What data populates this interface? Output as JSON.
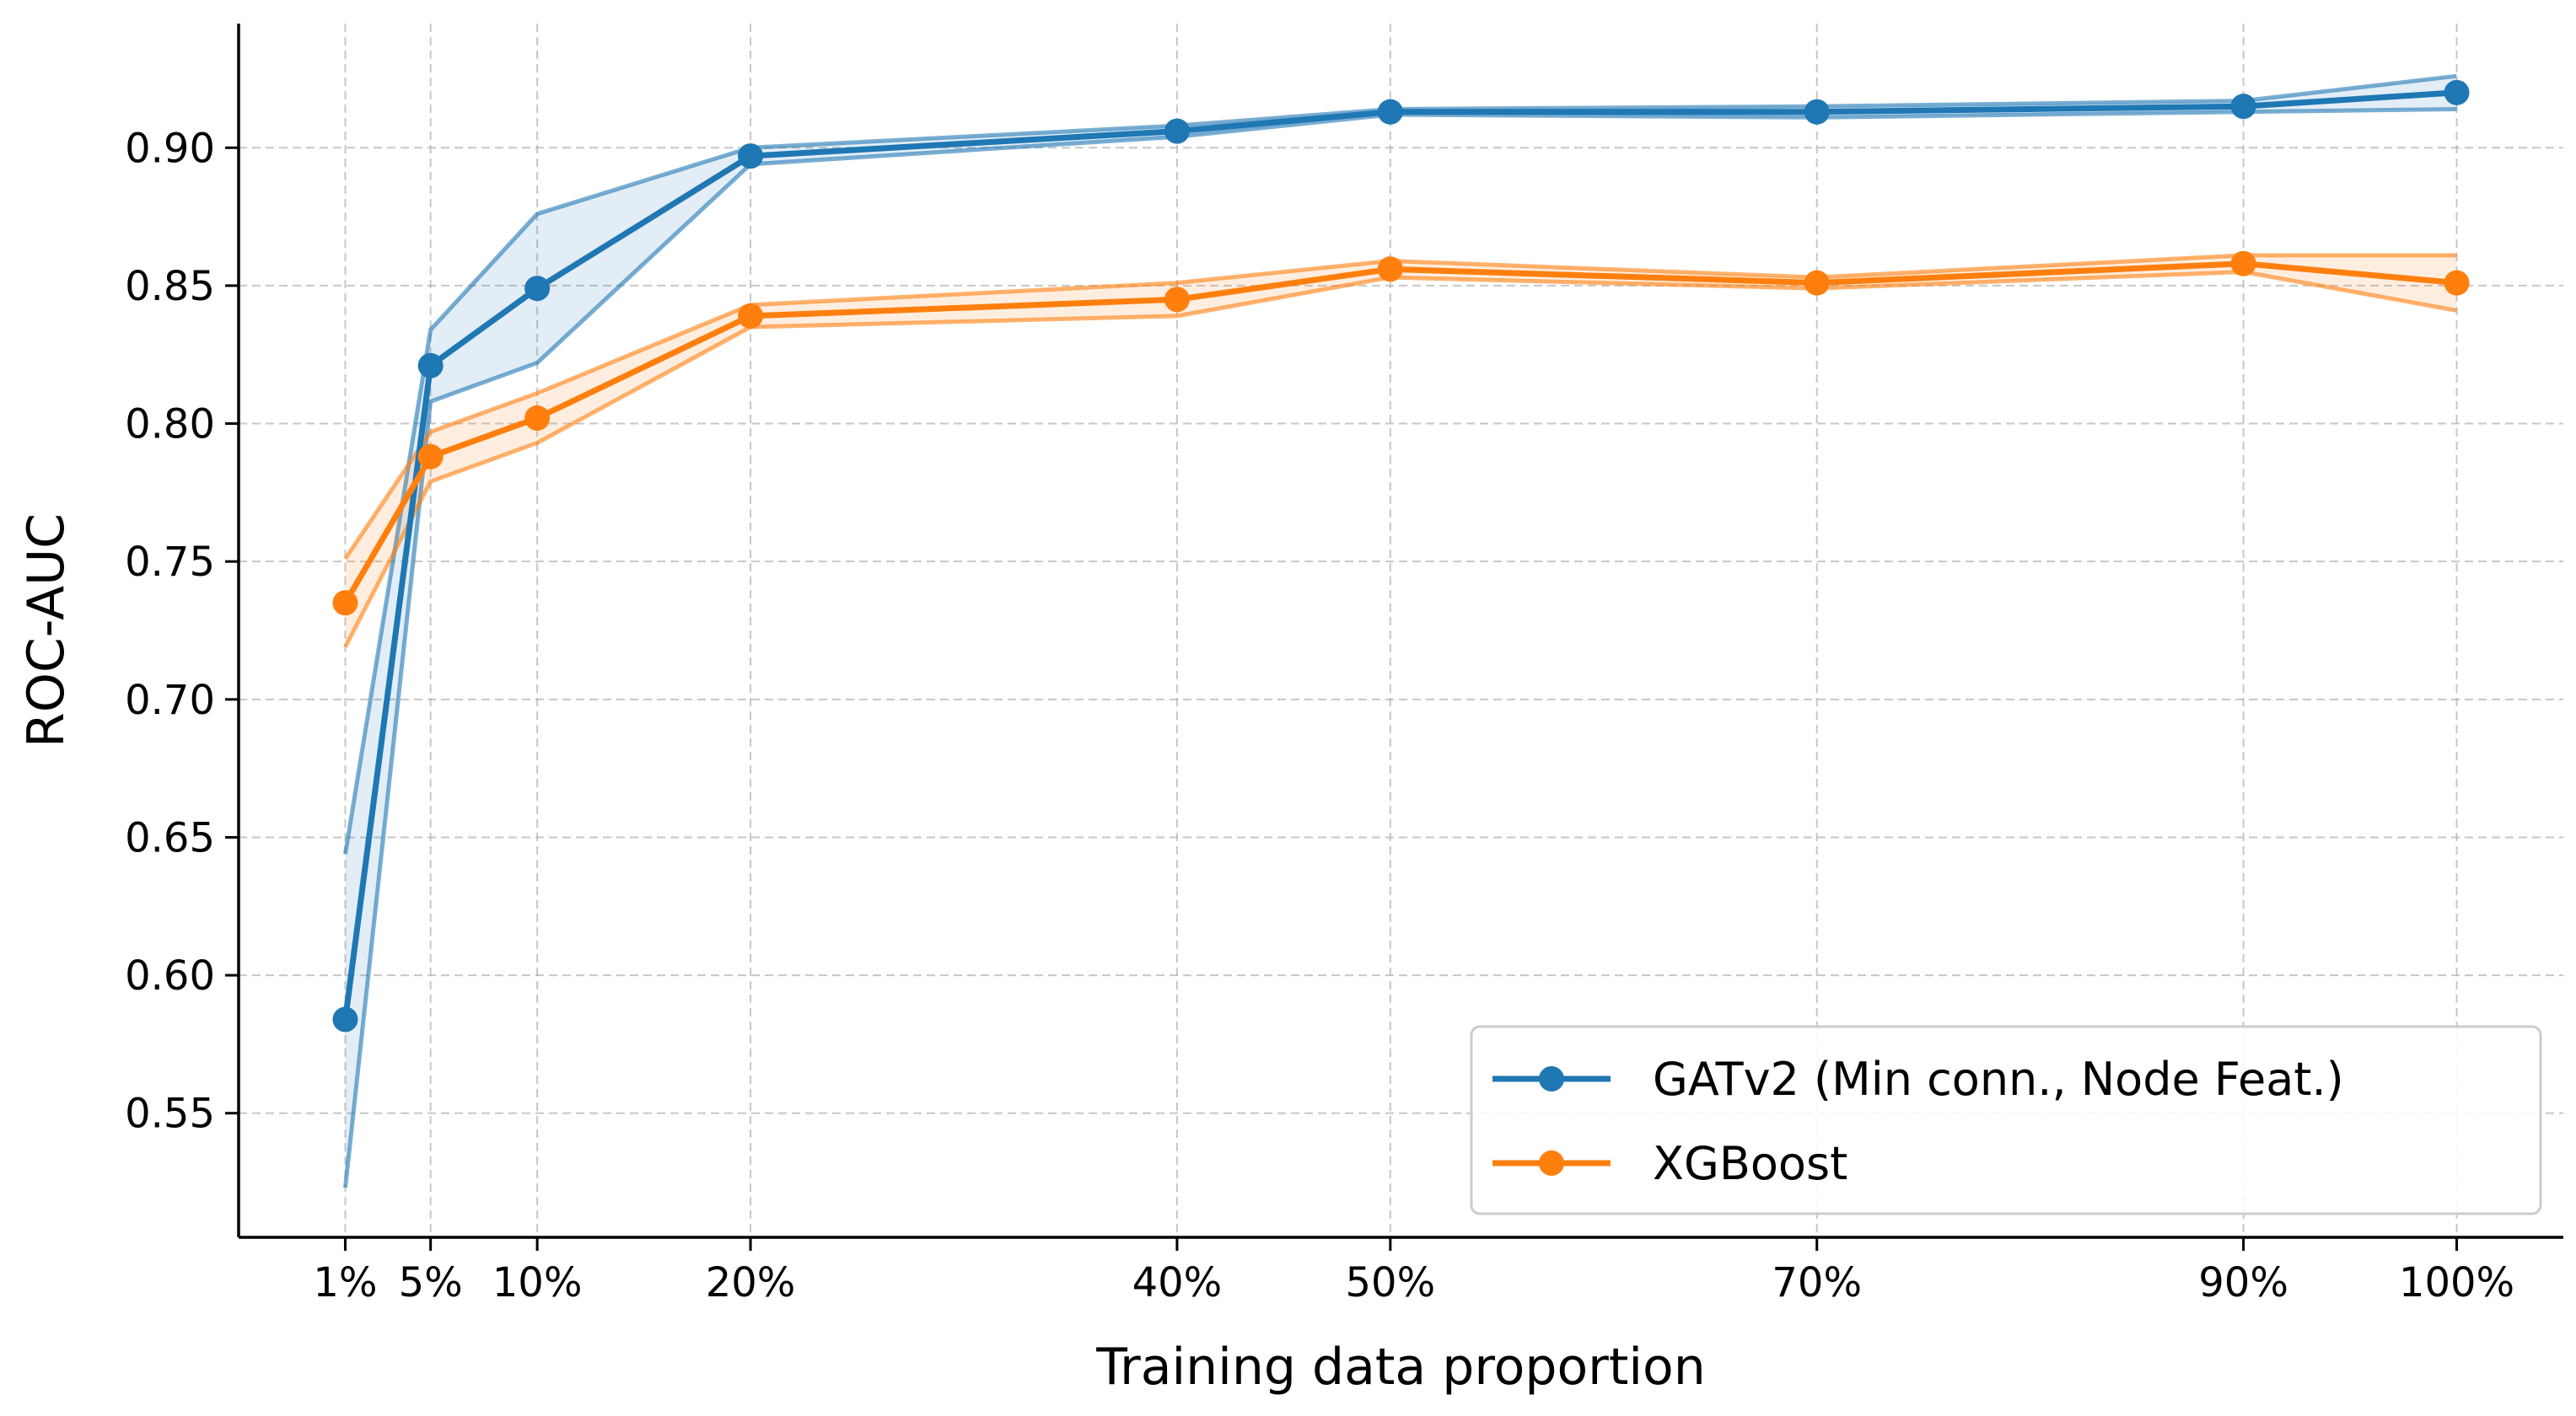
{
  "chart_data": {
    "type": "line",
    "title": "",
    "xlabel": "Training data proportion",
    "ylabel": "ROC-AUC",
    "x": [
      1,
      5,
      10,
      20,
      40,
      50,
      70,
      90,
      100
    ],
    "x_tick_labels": [
      "1%",
      "5%",
      "10%",
      "20%",
      "40%",
      "50%",
      "70%",
      "90%",
      "100%"
    ],
    "y_ticks": [
      0.55,
      0.6,
      0.65,
      0.7,
      0.75,
      0.8,
      0.85,
      0.9
    ],
    "y_tick_labels": [
      "0.55",
      "0.60",
      "0.65",
      "0.70",
      "0.75",
      "0.80",
      "0.85",
      "0.90"
    ],
    "xlim": [
      -4,
      105
    ],
    "ylim": [
      0.505,
      0.945
    ],
    "grid": true,
    "legend_position": "lower-right",
    "series": [
      {
        "name": "GATv2 (Min conn., Node Feat.)",
        "color": "#1f77b4",
        "values": [
          0.584,
          0.821,
          0.849,
          0.897,
          0.906,
          0.913,
          0.913,
          0.915,
          0.92
        ],
        "upper": [
          0.644,
          0.834,
          0.876,
          0.9,
          0.908,
          0.914,
          0.915,
          0.917,
          0.926
        ],
        "lower": [
          0.523,
          0.808,
          0.822,
          0.894,
          0.904,
          0.912,
          0.911,
          0.913,
          0.914
        ]
      },
      {
        "name": "XGBoost",
        "color": "#ff7f0e",
        "values": [
          0.735,
          0.788,
          0.802,
          0.839,
          0.845,
          0.856,
          0.851,
          0.858,
          0.851
        ],
        "upper": [
          0.751,
          0.797,
          0.811,
          0.843,
          0.851,
          0.859,
          0.853,
          0.861,
          0.861
        ],
        "lower": [
          0.719,
          0.779,
          0.793,
          0.835,
          0.839,
          0.853,
          0.849,
          0.855,
          0.841
        ]
      }
    ]
  }
}
